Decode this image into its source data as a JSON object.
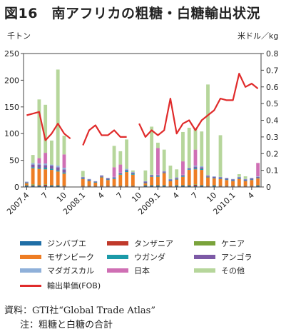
{
  "title": "図16　南アフリカの粗糖・白糖輸出状況",
  "left_unit": "千トン",
  "right_unit": "米ドル／kg",
  "source": "資料：GTI社“Global Trade Atlas”",
  "note": "注：粗糖と白糖の合計",
  "colors": {
    "zimbabwe": "#1f6ea6",
    "tanzania": "#c0392b",
    "kenya": "#7aa33b",
    "mozambique": "#ee7d24",
    "uganda": "#1b9aa8",
    "angola": "#7d5aa6",
    "madagascar": "#8fb0d9",
    "japan": "#cf6fb4",
    "other": "#b6d69b",
    "price": "#e02b2b"
  },
  "chart_data": {
    "type": "bar+line",
    "categories": [
      "2007.4",
      "2007.5",
      "2007.6",
      "2007.7",
      "2007.8",
      "2007.9",
      "2007.10",
      "2007.11",
      "2007.12",
      "2008.1",
      "2008.2",
      "2008.3",
      "2008.4",
      "2008.5",
      "2008.6",
      "2008.7",
      "2008.8",
      "2008.9",
      "2008.10",
      "2008.11",
      "2008.12",
      "2009.1",
      "2009.2",
      "2009.3",
      "2009.4",
      "2009.5",
      "2009.6",
      "2009.7",
      "2009.8",
      "2009.9",
      "2009.10",
      "2009.11",
      "2009.12",
      "2010.1",
      "2010.2",
      "2010.3",
      "2010.4",
      "2010.5"
    ],
    "x_tick_labels": [
      "2007.4",
      "7",
      "10",
      "2008.1",
      "4",
      "7",
      "10",
      "2009.1",
      "4",
      "7",
      "10",
      "2010.1",
      "4"
    ],
    "x_tick_indices": [
      0,
      3,
      6,
      9,
      12,
      15,
      18,
      21,
      24,
      27,
      30,
      33,
      36
    ],
    "y_left": {
      "min": 0,
      "max": 250,
      "ticks": [
        0,
        50,
        100,
        150,
        200,
        250
      ]
    },
    "y_right": {
      "min": 0,
      "max": 0.8,
      "ticks": [
        "0",
        "0.1",
        "0.2",
        "0.3",
        "0.4",
        "0.5",
        "0.6",
        "0.7",
        "0.8"
      ]
    },
    "stack_order": [
      "zimbabwe",
      "tanzania",
      "kenya",
      "mozambique",
      "uganda",
      "angola",
      "madagascar",
      "japan",
      "other"
    ],
    "series": [
      {
        "key": "zimbabwe",
        "name": "ジンバブエ",
        "values": [
          2,
          2,
          2,
          2,
          2,
          2,
          1,
          0,
          0,
          1,
          1,
          1,
          1,
          1,
          1,
          1,
          1,
          1,
          0,
          2,
          2,
          2,
          2,
          1,
          2,
          2,
          2,
          2,
          2,
          1,
          2,
          1,
          1,
          1,
          1,
          1,
          1,
          2
        ]
      },
      {
        "key": "tanzania",
        "name": "タンザニア",
        "values": [
          1,
          1,
          1,
          2,
          1,
          1,
          1,
          0,
          0,
          1,
          1,
          1,
          1,
          1,
          1,
          1,
          1,
          1,
          0,
          1,
          1,
          1,
          1,
          1,
          1,
          1,
          1,
          2,
          1,
          1,
          1,
          1,
          1,
          1,
          1,
          1,
          1,
          1
        ]
      },
      {
        "key": "kenya",
        "name": "ケニア",
        "values": [
          1,
          2,
          1,
          1,
          1,
          1,
          1,
          0,
          0,
          1,
          1,
          1,
          1,
          1,
          1,
          1,
          1,
          1,
          0,
          1,
          1,
          1,
          1,
          1,
          1,
          1,
          1,
          1,
          1,
          1,
          1,
          1,
          1,
          1,
          1,
          1,
          1,
          1
        ]
      },
      {
        "key": "mozambique",
        "name": "モザンビーク",
        "values": [
          3,
          30,
          30,
          28,
          28,
          25,
          22,
          0,
          0,
          12,
          8,
          5,
          15,
          10,
          12,
          20,
          25,
          20,
          0,
          3,
          15,
          15,
          22,
          8,
          10,
          15,
          28,
          28,
          28,
          15,
          12,
          12,
          10,
          8,
          12,
          8,
          10,
          12
        ]
      },
      {
        "key": "uganda",
        "name": "ウガンダ",
        "values": [
          1,
          2,
          2,
          3,
          2,
          2,
          2,
          0,
          0,
          1,
          1,
          1,
          1,
          1,
          1,
          1,
          2,
          2,
          0,
          1,
          1,
          1,
          1,
          1,
          1,
          1,
          1,
          2,
          2,
          1,
          1,
          1,
          1,
          1,
          1,
          1,
          1,
          1
        ]
      },
      {
        "key": "angola",
        "name": "アンゴラ",
        "values": [
          1,
          5,
          6,
          5,
          6,
          6,
          6,
          0,
          0,
          2,
          2,
          1,
          2,
          2,
          2,
          2,
          2,
          2,
          0,
          2,
          2,
          2,
          2,
          2,
          2,
          2,
          2,
          3,
          3,
          2,
          2,
          2,
          2,
          2,
          2,
          2,
          2,
          2
        ]
      },
      {
        "key": "madagascar",
        "name": "マダガスカル",
        "values": [
          1,
          3,
          2,
          3,
          2,
          3,
          3,
          0,
          0,
          1,
          1,
          1,
          1,
          1,
          1,
          1,
          2,
          1,
          0,
          1,
          1,
          1,
          1,
          1,
          1,
          1,
          1,
          2,
          2,
          1,
          1,
          1,
          1,
          1,
          1,
          1,
          1,
          1
        ]
      },
      {
        "key": "japan",
        "name": "日本",
        "values": [
          0,
          0,
          10,
          20,
          0,
          0,
          25,
          0,
          0,
          0,
          0,
          0,
          0,
          0,
          18,
          15,
          0,
          0,
          0,
          0,
          0,
          50,
          0,
          0,
          0,
          25,
          0,
          30,
          0,
          0,
          0,
          0,
          0,
          0,
          0,
          0,
          0,
          25
        ]
      },
      {
        "key": "other",
        "name": "その他",
        "values": [
          0,
          15,
          110,
          90,
          45,
          180,
          35,
          0,
          0,
          11,
          0,
          0,
          0,
          0,
          40,
          25,
          55,
          3,
          0,
          20,
          90,
          10,
          40,
          25,
          15,
          55,
          75,
          40,
          65,
          170,
          0,
          78,
          0,
          0,
          5,
          5,
          0,
          0
        ]
      }
    ],
    "price_line": {
      "name": "輸出単価(FOB)",
      "values": [
        0.43,
        0.44,
        0.45,
        0.28,
        0.32,
        0.38,
        0.32,
        0.29,
        null,
        0.25,
        0.34,
        0.37,
        0.31,
        0.31,
        0.34,
        0.3,
        0.3,
        null,
        0.38,
        0.3,
        0.34,
        0.31,
        0.34,
        0.53,
        0.32,
        0.38,
        0.4,
        0.34,
        0.4,
        0.43,
        0.46,
        0.53,
        0.52,
        0.52,
        0.68,
        0.6,
        0.62,
        0.59
      ]
    }
  }
}
